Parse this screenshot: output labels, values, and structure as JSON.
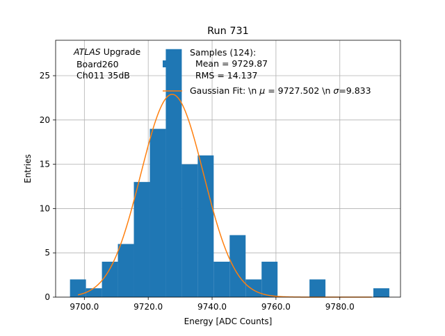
{
  "chart_data": {
    "type": "bar",
    "title": "Run 731",
    "xlabel": "Energy [ADC Counts]",
    "ylabel": "Entries",
    "xlim": [
      9691.0,
      9799.0
    ],
    "ylim": [
      0,
      29
    ],
    "grid": true,
    "xticks": [
      {
        "value": 9700,
        "label": "9700.0"
      },
      {
        "value": 9720,
        "label": "9720.0"
      },
      {
        "value": 9740,
        "label": "9740.0"
      },
      {
        "value": 9760,
        "label": "9760.0"
      },
      {
        "value": 9780,
        "label": "9780.0"
      }
    ],
    "yticks": [
      {
        "value": 0,
        "label": "0"
      },
      {
        "value": 5,
        "label": "5"
      },
      {
        "value": 10,
        "label": "10"
      },
      {
        "value": 15,
        "label": "15"
      },
      {
        "value": 20,
        "label": "20"
      },
      {
        "value": 25,
        "label": "25"
      }
    ],
    "bar_color": "#1f77b4",
    "fit_color": "#ff7f0e",
    "histogram": {
      "bin_edges": [
        9695.5,
        9700.5,
        9705.5,
        9710.5,
        9715.5,
        9720.5,
        9725.5,
        9730.5,
        9735.5,
        9740.5,
        9745.5,
        9750.5,
        9755.5,
        9760.5,
        9765.5,
        9770.5,
        9775.5,
        9780.5,
        9785.5,
        9790.5,
        9795.5
      ],
      "counts": [
        2,
        1,
        4,
        6,
        13,
        19,
        28,
        15,
        16,
        4,
        7,
        2,
        4,
        0,
        0,
        2,
        0,
        0,
        0,
        1
      ]
    },
    "gaussian_fit": {
      "mu": 9727.502,
      "sigma": 9.833,
      "amplitude": 22.9,
      "x_range": [
        9698.0,
        9790.0
      ]
    },
    "annotation": {
      "line1_italic": "ATLAS",
      "line1_rest": " Upgrade",
      "line2": " Board260",
      "line3": " Ch011 35dB"
    },
    "legend": {
      "placement": "top-right",
      "samples_lines": [
        "Samples (124):",
        "  Mean = 9729.87",
        "  RMS = 14.137"
      ],
      "fit_prefix": "Gaussian Fit: \\n ",
      "mu_symbol": "μ",
      "fit_mid": " = 9727.502 \\n ",
      "sigma_symbol": "σ",
      "fit_suffix": "=9.833"
    }
  }
}
